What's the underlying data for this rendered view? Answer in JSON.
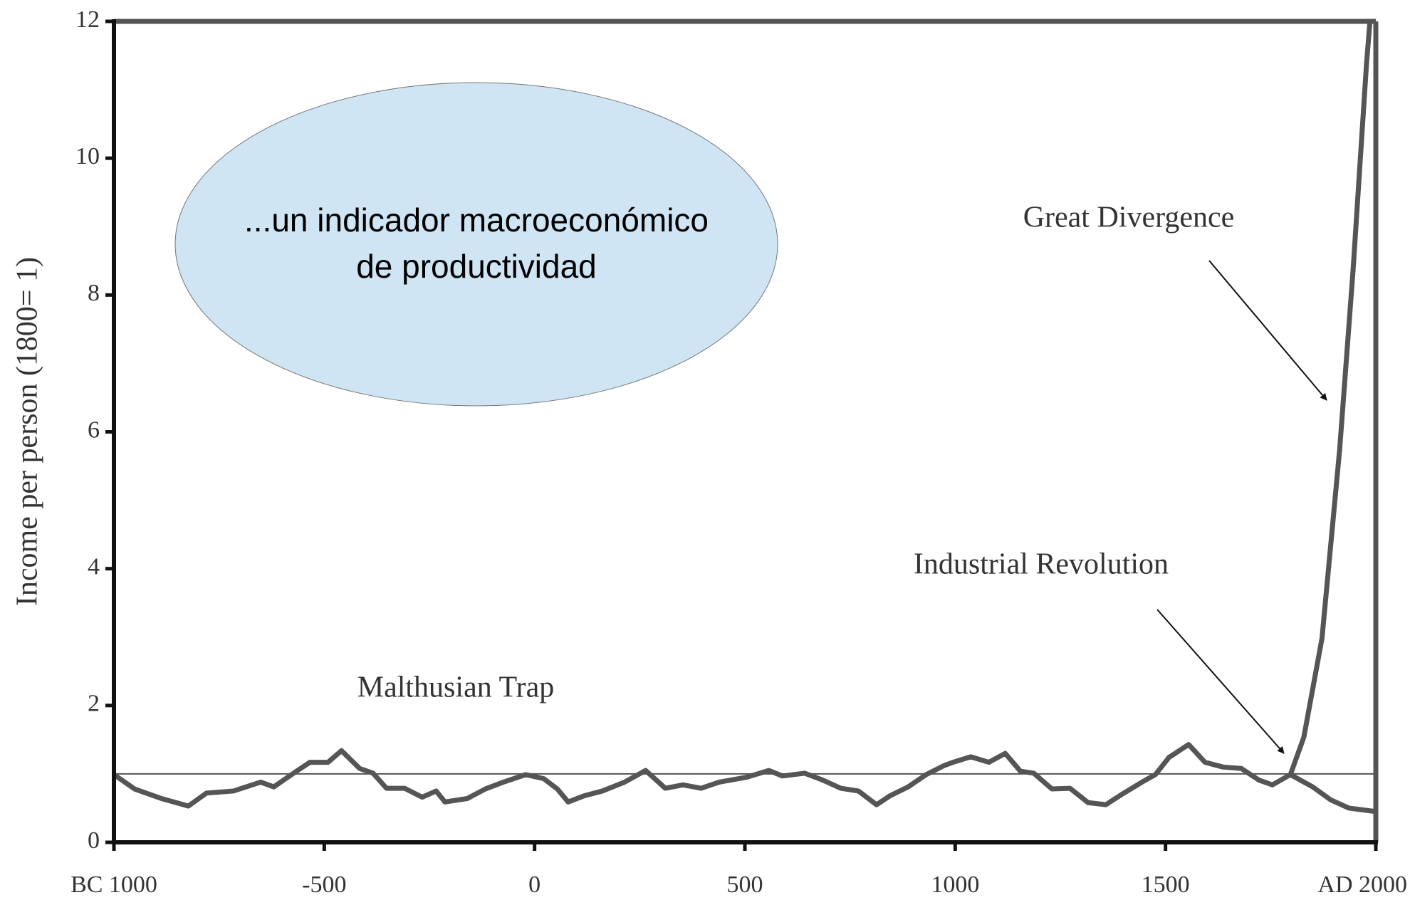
{
  "chart_data": {
    "type": "line",
    "y_label": "Income per person (1800= 1)",
    "xlim": [
      -1000,
      2000
    ],
    "ylim": [
      0,
      12
    ],
    "xticks": [
      {
        "value": -1000,
        "label": "BC 1000"
      },
      -500,
      0,
      500,
      1000,
      1500,
      {
        "value": 2000,
        "label": "AD 2000"
      }
    ],
    "yticks": [
      0,
      2,
      4,
      6,
      8,
      10,
      12
    ],
    "reference_line": 1,
    "series": [
      {
        "color": "#555555",
        "x": [
          -1000,
          -951,
          -887,
          -823,
          -780,
          -716,
          -651,
          -620,
          -566,
          -534,
          -491,
          -459,
          -416,
          -384,
          -352,
          -309,
          -267,
          -234,
          -213,
          -160,
          -117,
          -74,
          -21,
          22,
          54,
          80,
          118,
          161,
          214,
          264,
          311,
          353,
          396,
          439,
          503,
          557,
          589,
          642,
          685,
          728,
          770,
          813,
          845,
          888,
          931,
          973,
          995,
          1037,
          1080,
          1119,
          1155,
          1187,
          1230,
          1273,
          1316,
          1358,
          1401,
          1444,
          1476,
          1508,
          1555,
          1594,
          1637,
          1680,
          1722,
          1754,
          1797
        ],
        "values": [
          0.99,
          0.78,
          0.64,
          0.53,
          0.72,
          0.75,
          0.88,
          0.81,
          1.04,
          1.17,
          1.17,
          1.34,
          1.08,
          1.01,
          0.79,
          0.79,
          0.66,
          0.75,
          0.59,
          0.64,
          0.78,
          0.88,
          0.99,
          0.93,
          0.78,
          0.59,
          0.68,
          0.75,
          0.88,
          1.05,
          0.79,
          0.84,
          0.79,
          0.88,
          0.95,
          1.05,
          0.97,
          1.01,
          0.91,
          0.79,
          0.75,
          0.55,
          0.68,
          0.81,
          0.99,
          1.12,
          1.17,
          1.25,
          1.17,
          1.3,
          1.04,
          1.01,
          0.78,
          0.79,
          0.58,
          0.55,
          0.72,
          0.88,
          0.99,
          1.24,
          1.43,
          1.17,
          1.1,
          1.08,
          0.91,
          0.84,
          0.99
        ]
      },
      {
        "color": "#555555",
        "x": [
          1797,
          1829,
          1872,
          1914,
          1946,
          1978,
          1990
        ],
        "values": [
          0.99,
          1.54,
          2.98,
          5.74,
          8.37,
          11.39,
          12.3
        ]
      },
      {
        "color": "#555555",
        "x": [
          1797,
          1850,
          1893,
          1936,
          2000
        ],
        "values": [
          0.99,
          0.81,
          0.62,
          0.5,
          0.45
        ]
      }
    ],
    "annotations": [
      "Great Divergence",
      "Industrial Revolution",
      "Malthusian Trap"
    ],
    "note_lines": [
      "...un indicador macroeconómico",
      "de productividad"
    ]
  }
}
